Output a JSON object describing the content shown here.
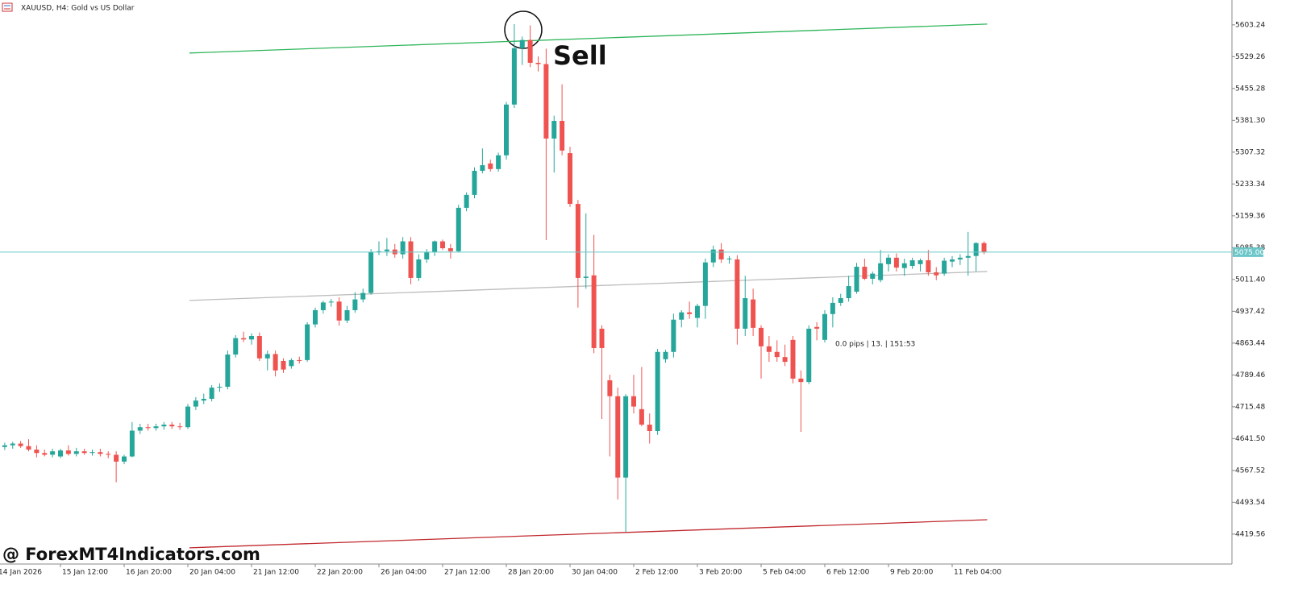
{
  "chart_data": {
    "type": "candlestick",
    "title": "XAUUSD, H4:  Gold vs US Dollar",
    "annotations": {
      "signal": "Sell",
      "watermark": "@ ForexMT4Indicators.com",
      "info": "0.0 pips | 13. | 151:53"
    },
    "categories": [
      "14 Jan 2026",
      null,
      null,
      null,
      null,
      null,
      null,
      null,
      "15 Jan 12:00",
      null,
      null,
      null,
      null,
      null,
      null,
      null,
      "16 Jan 20:00",
      null,
      null,
      null,
      null,
      null,
      null,
      null,
      "20 Jan 04:00",
      null,
      null,
      null,
      null,
      null,
      null,
      null,
      "21 Jan 12:00",
      null,
      null,
      null,
      null,
      null,
      null,
      null,
      "22 Jan 20:00",
      null,
      null,
      null,
      null,
      null,
      null,
      null,
      "26 Jan 04:00",
      null,
      null,
      null,
      null,
      null,
      null,
      null,
      "27 Jan 12:00",
      null,
      null,
      null,
      null,
      null,
      null,
      null,
      "28 Jan 20:00",
      null,
      null,
      null,
      null,
      null,
      null,
      null,
      "30 Jan 04:00",
      null,
      null,
      null,
      null,
      null,
      null,
      null,
      "2 Feb 12:00",
      null,
      null,
      null,
      null,
      null,
      null,
      null,
      "3 Feb 20:00",
      null,
      null,
      null,
      null,
      null,
      null,
      null,
      "5 Feb 04:00",
      null,
      null,
      null,
      null,
      null,
      null,
      null,
      "6 Feb 12:00",
      null,
      null,
      null,
      null,
      null,
      null,
      null,
      "9 Feb 20:00",
      null,
      null,
      null,
      null,
      null,
      null,
      null,
      "11 Feb 04:00",
      null,
      null,
      null,
      null
    ],
    "open": [
      4620,
      4622,
      4626,
      4630,
      4624,
      4616,
      4608,
      4604,
      4600,
      4614,
      4606,
      4612,
      4608,
      4610,
      4606,
      4604,
      4588,
      4600,
      4660,
      4668,
      4666,
      4670,
      4674,
      4670,
      4668,
      4716,
      4730,
      4734,
      4760,
      4762,
      4837,
      4875,
      4872,
      4880,
      4828,
      4838,
      4822,
      4810,
      4824,
      4824,
      4907,
      4940,
      4958,
      4960,
      4916,
      4940,
      4965,
      4980,
      5075,
      5077,
      5081,
      5070,
      5100,
      5015,
      5058,
      5075,
      5100,
      5084,
      5077,
      5178,
      5208,
      5264,
      5281,
      5268,
      5300,
      5418,
      5549,
      5568,
      5515,
      5512,
      5339,
      5380,
      5305,
      5187,
      5015,
      5021,
      4897,
      4777,
      4740,
      4551,
      4740,
      4710,
      4674,
      4659,
      4826,
      4843,
      4918,
      4935,
      4922,
      4950,
      5051,
      5081,
      5058,
      5058,
      4897,
      4965,
      4899,
      4856,
      4843,
      4831,
      4871,
      4781,
      4773,
      4901,
      4871,
      4931,
      4957,
      4968,
      4983,
      5041,
      5013,
      5010,
      5047,
      5062,
      5038,
      5043,
      5047,
      5056,
      5028,
      5025,
      5053,
      5058,
      5062,
      5066,
      5096
    ],
    "high": [
      4628,
      4632,
      4634,
      4636,
      4640,
      4626,
      4616,
      4618,
      4618,
      4626,
      4620,
      4618,
      4616,
      4618,
      4612,
      4612,
      4604,
      4680,
      4676,
      4676,
      4676,
      4680,
      4680,
      4678,
      4722,
      4738,
      4746,
      4766,
      4770,
      4846,
      4882,
      4890,
      4886,
      4888,
      4846,
      4846,
      4828,
      4828,
      4832,
      4912,
      4946,
      4962,
      4966,
      4970,
      4950,
      4982,
      4990,
      5082,
      5100,
      5108,
      5094,
      5110,
      5110,
      5070,
      5082,
      5102,
      5104,
      5094,
      5185,
      5214,
      5272,
      5316,
      5290,
      5306,
      5424,
      5605,
      5576,
      5602,
      5530,
      5548,
      5392,
      5465,
      5320,
      5196,
      5165,
      5115,
      4905,
      4790,
      4760,
      4745,
      4790,
      4808,
      4700,
      4850,
      4848,
      4932,
      4940,
      4960,
      4955,
      5060,
      5090,
      5096,
      5066,
      5068,
      5020,
      4990,
      4905,
      4880,
      4870,
      4860,
      4880,
      4800,
      4905,
      4912,
      4940,
      4970,
      4978,
      5020,
      5050,
      5060,
      5030,
      5080,
      5070,
      5072,
      5060,
      5062,
      5060,
      5080,
      5040,
      5062,
      5066,
      5070,
      5122,
      5098,
      5100
    ],
    "low": [
      4612,
      4615,
      4618,
      4620,
      4612,
      4598,
      4600,
      4598,
      4596,
      4602,
      4600,
      4604,
      4602,
      4600,
      4596,
      4540,
      4582,
      4598,
      4652,
      4660,
      4660,
      4662,
      4664,
      4662,
      4664,
      4708,
      4722,
      4728,
      4750,
      4756,
      4830,
      4866,
      4860,
      4822,
      4800,
      4786,
      4794,
      4804,
      4816,
      4820,
      4900,
      4932,
      4948,
      4904,
      4910,
      4934,
      4958,
      4976,
      5068,
      5066,
      5062,
      5060,
      5000,
      5008,
      5050,
      5066,
      5080,
      5060,
      5074,
      5170,
      5200,
      5258,
      5262,
      5262,
      5290,
      5410,
      5510,
      5505,
      5495,
      5103,
      5260,
      5300,
      5180,
      4946,
      4990,
      4840,
      4687,
      4600,
      4500,
      4425,
      4700,
      4670,
      4630,
      4650,
      4818,
      4830,
      4900,
      4920,
      4900,
      4920,
      5040,
      5050,
      5048,
      4860,
      4880,
      4880,
      4781,
      4820,
      4820,
      4810,
      4770,
      4657,
      4768,
      4870,
      4865,
      4900,
      4950,
      4960,
      4978,
      5010,
      5000,
      5005,
      5030,
      5030,
      5020,
      5036,
      5030,
      5020,
      5010,
      5020,
      5040,
      5045,
      5020,
      5030,
      5070
    ],
    "close": [
      4622,
      4626,
      4630,
      4624,
      4616,
      4608,
      4604,
      4612,
      4614,
      4606,
      4612,
      4608,
      4610,
      4606,
      4604,
      4588,
      4600,
      4660,
      4668,
      4666,
      4670,
      4674,
      4670,
      4668,
      4716,
      4730,
      4734,
      4760,
      4762,
      4837,
      4875,
      4872,
      4880,
      4828,
      4838,
      4800,
      4802,
      4824,
      4822,
      4907,
      4940,
      4958,
      4960,
      4916,
      4940,
      4965,
      4980,
      5075,
      5077,
      5081,
      5070,
      5100,
      5015,
      5058,
      5075,
      5100,
      5084,
      5077,
      5178,
      5208,
      5264,
      5277,
      5268,
      5300,
      5418,
      5549,
      5568,
      5515,
      5512,
      5339,
      5380,
      5311,
      5187,
      5015,
      5018,
      4852,
      4852,
      4740,
      4551,
      4740,
      4716,
      4674,
      4659,
      4843,
      4843,
      4918,
      4935,
      4931,
      4950,
      5051,
      5081,
      5058,
      5060,
      4897,
      4968,
      4899,
      4856,
      4843,
      4831,
      4820,
      4781,
      4773,
      4897,
      4897,
      4931,
      4957,
      4968,
      4996,
      5041,
      5013,
      5025,
      5049,
      5062,
      5039,
      5049,
      5056,
      5056,
      5028,
      5021,
      5055,
      5058,
      5062,
      5066,
      5096,
      5075
    ],
    "up_color": "#26a69a",
    "down_color": "#ef5350",
    "ylim": [
      4350,
      5661
    ],
    "yticks": [
      5603.24,
      5529.26,
      5455.28,
      {
        "value": 5381.3,
        "label": "5381.30"
      },
      5307.32,
      5233.34,
      5159.36,
      5085.38,
      {
        "value": 5011.4,
        "label": "5011.40"
      },
      4937.42,
      4863.44,
      4789.46,
      4715.48,
      {
        "value": 4641.5,
        "label": "4641.50"
      },
      4567.52,
      4493.54,
      4419.56
    ],
    "current_price": {
      "value": 5075,
      "label": "5075.00",
      "color": "#6cc6c8"
    },
    "lines": [
      {
        "color": "#2fb55a",
        "x": [
          24.2,
          124.4
        ],
        "y": [
          5537.7,
          5605
        ]
      },
      {
        "color": "#bdbdbd",
        "x": [
          24.2,
          124.4
        ],
        "y": [
          4962.7,
          5030
        ]
      },
      {
        "color": "#c0282d",
        "x": [
          24.2,
          124.4
        ],
        "y": [
          4387.7,
          4453
        ]
      }
    ]
  }
}
